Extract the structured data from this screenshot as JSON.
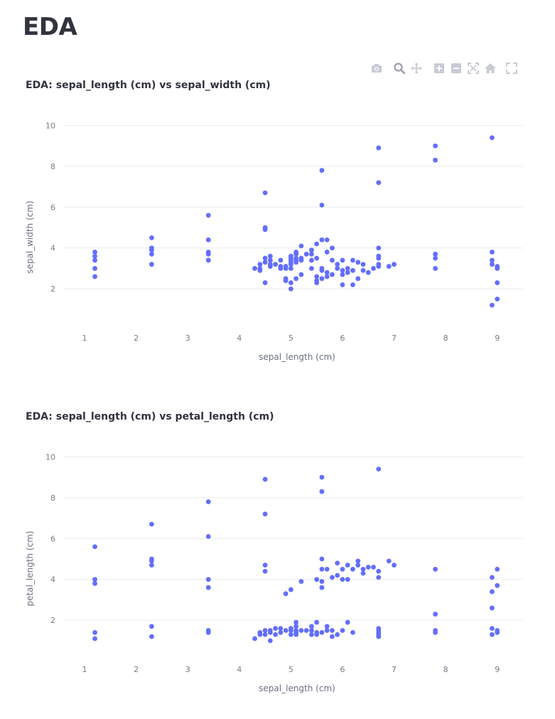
{
  "page": {
    "title": "EDA"
  },
  "modebar": {
    "buttons": [
      {
        "name": "camera-icon",
        "label": "Download plot as a png"
      },
      {
        "name": "zoom-icon",
        "label": "Zoom"
      },
      {
        "name": "pan-icon",
        "label": "Pan"
      },
      {
        "name": "zoom-in-icon",
        "label": "Zoom in"
      },
      {
        "name": "zoom-out-icon",
        "label": "Zoom out"
      },
      {
        "name": "autoscale-icon",
        "label": "Autoscale"
      },
      {
        "name": "home-icon",
        "label": "Reset axes"
      },
      {
        "name": "fullscreen-icon",
        "label": "Fullscreen"
      }
    ]
  },
  "chart_data": [
    {
      "type": "scatter",
      "title": "EDA: sepal_length (cm) vs sepal_width (cm)",
      "xlabel": "sepal_length (cm)",
      "ylabel": "sepal_width (cm)",
      "xlim": [
        0.6,
        9.5
      ],
      "ylim": [
        0.3,
        10.5
      ],
      "xticks": [
        1,
        2,
        3,
        4,
        5,
        6,
        7,
        8,
        9
      ],
      "yticks": [
        2,
        4,
        6,
        8,
        10
      ],
      "grid": true,
      "marker_color": "#636efa",
      "points": [
        [
          1.2,
          3.8
        ],
        [
          1.2,
          3.6
        ],
        [
          1.2,
          3.4
        ],
        [
          1.2,
          3.0
        ],
        [
          1.2,
          2.6
        ],
        [
          2.3,
          4.5
        ],
        [
          2.3,
          4.0
        ],
        [
          2.3,
          3.9
        ],
        [
          2.3,
          3.7
        ],
        [
          2.3,
          3.2
        ],
        [
          3.4,
          5.6
        ],
        [
          3.4,
          4.4
        ],
        [
          3.4,
          3.8
        ],
        [
          3.4,
          3.7
        ],
        [
          3.4,
          3.4
        ],
        [
          4.3,
          3.0
        ],
        [
          4.4,
          3.2
        ],
        [
          4.4,
          2.9
        ],
        [
          4.4,
          3.0
        ],
        [
          4.5,
          6.7
        ],
        [
          4.5,
          5.0
        ],
        [
          4.5,
          4.9
        ],
        [
          4.5,
          3.5
        ],
        [
          4.5,
          3.3
        ],
        [
          4.5,
          2.3
        ],
        [
          4.6,
          3.6
        ],
        [
          4.6,
          3.4
        ],
        [
          4.6,
          3.2
        ],
        [
          4.6,
          3.1
        ],
        [
          4.7,
          3.2
        ],
        [
          4.8,
          3.4
        ],
        [
          4.8,
          3.1
        ],
        [
          4.8,
          3.0
        ],
        [
          4.9,
          3.1
        ],
        [
          4.9,
          3.0
        ],
        [
          4.9,
          2.5
        ],
        [
          4.9,
          2.4
        ],
        [
          5.0,
          3.6
        ],
        [
          5.0,
          3.5
        ],
        [
          5.0,
          3.4
        ],
        [
          5.0,
          3.3
        ],
        [
          5.0,
          3.2
        ],
        [
          5.0,
          3.0
        ],
        [
          5.0,
          2.3
        ],
        [
          5.0,
          2.0
        ],
        [
          5.1,
          3.8
        ],
        [
          5.1,
          3.7
        ],
        [
          5.1,
          3.5
        ],
        [
          5.1,
          3.4
        ],
        [
          5.1,
          3.3
        ],
        [
          5.1,
          2.5
        ],
        [
          5.2,
          4.1
        ],
        [
          5.2,
          3.5
        ],
        [
          5.2,
          3.4
        ],
        [
          5.2,
          2.7
        ],
        [
          5.3,
          3.7
        ],
        [
          5.4,
          3.9
        ],
        [
          5.4,
          3.7
        ],
        [
          5.4,
          3.4
        ],
        [
          5.4,
          3.0
        ],
        [
          5.5,
          4.2
        ],
        [
          5.5,
          3.5
        ],
        [
          5.5,
          2.6
        ],
        [
          5.5,
          2.4
        ],
        [
          5.5,
          2.3
        ],
        [
          5.6,
          7.8
        ],
        [
          5.6,
          6.1
        ],
        [
          5.6,
          4.4
        ],
        [
          5.6,
          3.0
        ],
        [
          5.6,
          2.9
        ],
        [
          5.6,
          2.5
        ],
        [
          5.7,
          4.4
        ],
        [
          5.7,
          3.8
        ],
        [
          5.7,
          2.8
        ],
        [
          5.7,
          2.6
        ],
        [
          5.8,
          4.0
        ],
        [
          5.8,
          3.4
        ],
        [
          5.8,
          2.7
        ],
        [
          5.9,
          3.2
        ],
        [
          5.9,
          3.0
        ],
        [
          6.0,
          3.4
        ],
        [
          6.0,
          2.9
        ],
        [
          6.0,
          2.7
        ],
        [
          6.0,
          2.2
        ],
        [
          6.1,
          3.0
        ],
        [
          6.1,
          2.8
        ],
        [
          6.2,
          3.4
        ],
        [
          6.2,
          2.9
        ],
        [
          6.2,
          2.2
        ],
        [
          6.3,
          3.3
        ],
        [
          6.3,
          2.5
        ],
        [
          6.4,
          3.2
        ],
        [
          6.4,
          2.9
        ],
        [
          6.5,
          2.8
        ],
        [
          6.6,
          3.0
        ],
        [
          6.7,
          8.9
        ],
        [
          6.7,
          7.2
        ],
        [
          6.7,
          4.0
        ],
        [
          6.7,
          3.6
        ],
        [
          6.7,
          3.5
        ],
        [
          6.7,
          3.2
        ],
        [
          6.7,
          3.1
        ],
        [
          6.9,
          3.1
        ],
        [
          7.0,
          3.2
        ],
        [
          7.8,
          9.0
        ],
        [
          7.8,
          8.3
        ],
        [
          7.8,
          3.7
        ],
        [
          7.8,
          3.5
        ],
        [
          7.8,
          3.0
        ],
        [
          8.9,
          9.4
        ],
        [
          8.9,
          3.8
        ],
        [
          8.9,
          3.4
        ],
        [
          8.9,
          3.2
        ],
        [
          8.9,
          1.2
        ],
        [
          9.0,
          3.1
        ],
        [
          9.0,
          3.0
        ],
        [
          9.0,
          2.3
        ],
        [
          9.0,
          1.5
        ]
      ]
    },
    {
      "type": "scatter",
      "title": "EDA: sepal_length (cm) vs petal_length (cm)",
      "xlabel": "sepal_length (cm)",
      "ylabel": "petal_length (cm)",
      "xlim": [
        0.6,
        9.5
      ],
      "ylim": [
        0.3,
        10.5
      ],
      "xticks": [
        1,
        2,
        3,
        4,
        5,
        6,
        7,
        8,
        9
      ],
      "yticks": [
        2,
        4,
        6,
        8,
        10
      ],
      "grid": true,
      "marker_color": "#636efa",
      "points": [
        [
          1.2,
          5.6
        ],
        [
          1.2,
          4.0
        ],
        [
          1.2,
          3.8
        ],
        [
          1.2,
          1.4
        ],
        [
          1.2,
          1.1
        ],
        [
          2.3,
          6.7
        ],
        [
          2.3,
          5.0
        ],
        [
          2.3,
          4.9
        ],
        [
          2.3,
          4.7
        ],
        [
          2.3,
          1.7
        ],
        [
          2.3,
          1.2
        ],
        [
          3.4,
          7.8
        ],
        [
          3.4,
          6.1
        ],
        [
          3.4,
          4.0
        ],
        [
          3.4,
          3.6
        ],
        [
          3.4,
          1.5
        ],
        [
          3.4,
          1.4
        ],
        [
          4.3,
          1.1
        ],
        [
          4.4,
          1.4
        ],
        [
          4.4,
          1.3
        ],
        [
          4.5,
          8.9
        ],
        [
          4.5,
          7.2
        ],
        [
          4.5,
          4.7
        ],
        [
          4.5,
          4.4
        ],
        [
          4.5,
          1.5
        ],
        [
          4.5,
          1.3
        ],
        [
          4.6,
          1.5
        ],
        [
          4.6,
          1.4
        ],
        [
          4.6,
          1.0
        ],
        [
          4.7,
          1.6
        ],
        [
          4.7,
          1.3
        ],
        [
          4.8,
          1.6
        ],
        [
          4.8,
          1.4
        ],
        [
          4.9,
          3.3
        ],
        [
          4.9,
          1.5
        ],
        [
          5.0,
          3.5
        ],
        [
          5.0,
          1.6
        ],
        [
          5.0,
          1.5
        ],
        [
          5.0,
          1.3
        ],
        [
          5.1,
          1.9
        ],
        [
          5.1,
          1.7
        ],
        [
          5.1,
          1.5
        ],
        [
          5.1,
          1.4
        ],
        [
          5.1,
          1.3
        ],
        [
          5.2,
          3.9
        ],
        [
          5.2,
          1.5
        ],
        [
          5.3,
          1.5
        ],
        [
          5.4,
          1.7
        ],
        [
          5.4,
          1.5
        ],
        [
          5.4,
          1.3
        ],
        [
          5.5,
          4.0
        ],
        [
          5.5,
          1.9
        ],
        [
          5.5,
          1.4
        ],
        [
          5.5,
          1.3
        ],
        [
          5.6,
          9.0
        ],
        [
          5.6,
          8.3
        ],
        [
          5.6,
          5.0
        ],
        [
          5.6,
          4.5
        ],
        [
          5.6,
          3.9
        ],
        [
          5.6,
          3.6
        ],
        [
          5.6,
          1.4
        ],
        [
          5.7,
          4.5
        ],
        [
          5.7,
          1.7
        ],
        [
          5.7,
          1.5
        ],
        [
          5.8,
          4.1
        ],
        [
          5.8,
          1.5
        ],
        [
          5.8,
          1.2
        ],
        [
          5.9,
          4.8
        ],
        [
          5.9,
          4.2
        ],
        [
          5.9,
          1.3
        ],
        [
          6.0,
          4.5
        ],
        [
          6.0,
          4.0
        ],
        [
          6.0,
          1.5
        ],
        [
          6.1,
          4.7
        ],
        [
          6.1,
          4.0
        ],
        [
          6.1,
          1.9
        ],
        [
          6.2,
          4.5
        ],
        [
          6.2,
          1.4
        ],
        [
          6.3,
          4.9
        ],
        [
          6.3,
          4.7
        ],
        [
          6.4,
          4.5
        ],
        [
          6.4,
          4.3
        ],
        [
          6.5,
          4.6
        ],
        [
          6.6,
          4.6
        ],
        [
          6.7,
          9.4
        ],
        [
          6.7,
          4.4
        ],
        [
          6.7,
          4.1
        ],
        [
          6.7,
          1.6
        ],
        [
          6.7,
          1.5
        ],
        [
          6.7,
          1.4
        ],
        [
          6.7,
          1.3
        ],
        [
          6.7,
          1.2
        ],
        [
          6.9,
          4.9
        ],
        [
          7.0,
          4.7
        ],
        [
          7.8,
          4.5
        ],
        [
          7.8,
          2.3
        ],
        [
          7.8,
          1.5
        ],
        [
          7.8,
          1.4
        ],
        [
          8.9,
          4.1
        ],
        [
          8.9,
          3.4
        ],
        [
          8.9,
          2.6
        ],
        [
          8.9,
          1.6
        ],
        [
          8.9,
          1.3
        ],
        [
          9.0,
          4.5
        ],
        [
          9.0,
          3.7
        ],
        [
          9.0,
          1.5
        ],
        [
          9.0,
          1.4
        ]
      ]
    }
  ]
}
